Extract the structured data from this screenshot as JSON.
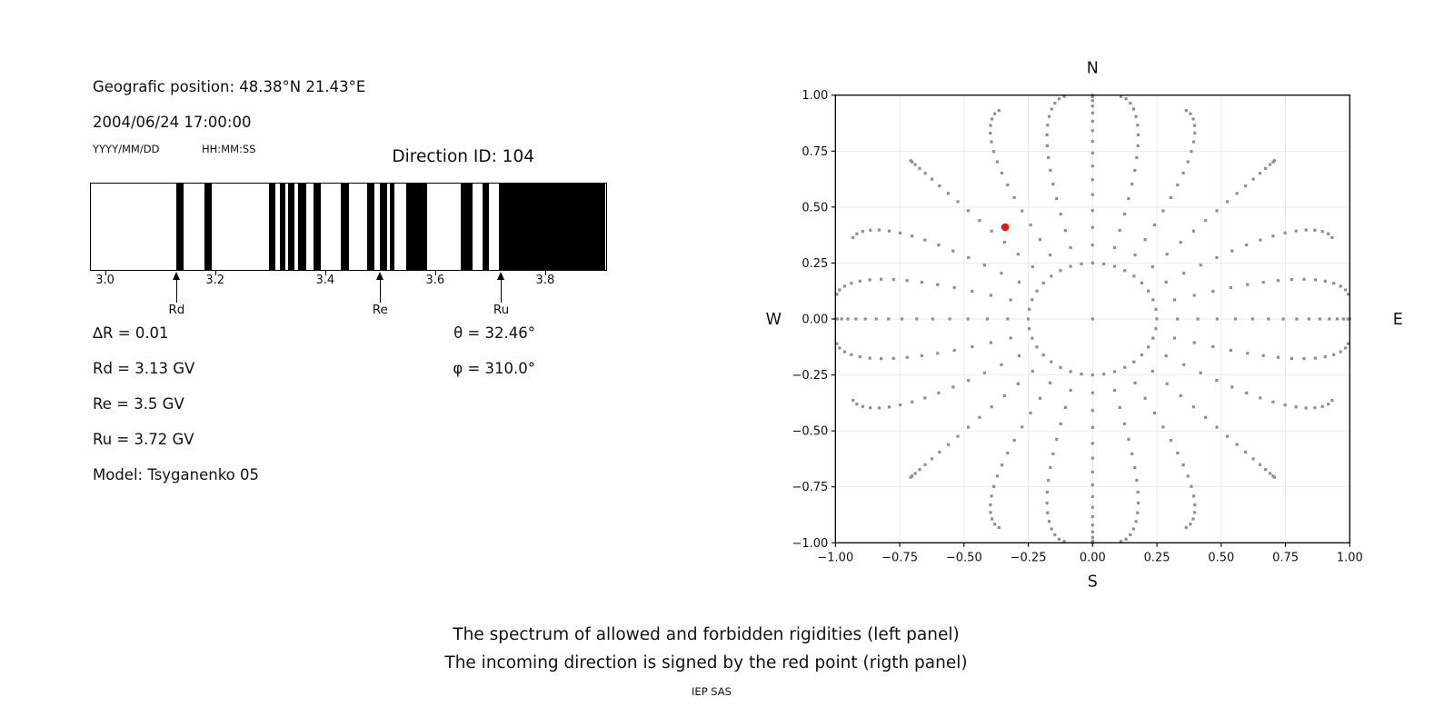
{
  "info": {
    "geo_position": "Geografic position: 48.38°N 21.43°E",
    "datetime": "2004/06/24 17:00:00",
    "date_format_label": "YYYY/MM/DD",
    "time_format_label": "HH:MM:SS",
    "direction_id": "Direction ID: 104"
  },
  "params": {
    "left": [
      "∆R = 0.01",
      "Rd = 3.13 GV",
      "Re = 3.5 GV",
      "Ru = 3.72 GV",
      "Model: Tsyganenko 05"
    ],
    "right": [
      "θ = 32.46°",
      "φ = 310.0°"
    ]
  },
  "caption": {
    "line1": "The spectrum of allowed and forbidden rigidities (left panel)",
    "line2": "The incoming direction is signed by the red point (rigth panel)",
    "credit": "IEP SAS"
  },
  "chart_data": [
    {
      "type": "bar",
      "name": "rigidity-spectrum",
      "description": "Binary spectrum of allowed (black) and forbidden (white) rigidities in GV",
      "xlim": [
        2.975,
        3.91
      ],
      "xticks": [
        3.0,
        3.2,
        3.4,
        3.6,
        3.8
      ],
      "xtick_labels": [
        "3.0",
        "3.2",
        "3.4",
        "3.6",
        "3.8"
      ],
      "black_intervals_gv": [
        [
          3.13,
          3.143
        ],
        [
          3.181,
          3.194
        ],
        [
          3.298,
          3.311
        ],
        [
          3.318,
          3.328
        ],
        [
          3.333,
          3.345
        ],
        [
          3.352,
          3.366
        ],
        [
          3.38,
          3.393
        ],
        [
          3.43,
          3.444
        ],
        [
          3.477,
          3.49
        ],
        [
          3.5,
          3.513
        ],
        [
          3.518,
          3.527
        ],
        [
          3.548,
          3.587
        ],
        [
          3.647,
          3.669
        ],
        [
          3.687,
          3.698
        ],
        [
          3.716,
          3.91
        ]
      ],
      "cutoff_arrows": [
        {
          "label": "Rd",
          "rigidity_gv": 3.13
        },
        {
          "label": "Re",
          "rigidity_gv": 3.5
        },
        {
          "label": "Ru",
          "rigidity_gv": 3.72
        }
      ]
    },
    {
      "type": "scatter",
      "name": "incoming-direction-map",
      "xlim": [
        -1.0,
        1.0
      ],
      "ylim": [
        -1.0,
        1.0
      ],
      "xticks": [
        -1.0,
        -0.75,
        -0.5,
        -0.25,
        0.0,
        0.25,
        0.5,
        0.75,
        1.0
      ],
      "tick_labels": [
        "−1.00",
        "−0.75",
        "−0.50",
        "−0.25",
        "0.00",
        "0.25",
        "0.50",
        "0.75",
        "1.00"
      ],
      "grid": true,
      "compass_labels": {
        "top": "N",
        "bottom": "S",
        "left": "W",
        "right": "E"
      },
      "red_point": {
        "x": -0.34,
        "y": 0.41
      },
      "center_dot": {
        "x": 0,
        "y": 0
      },
      "inner_ring": {
        "radius": 0.25,
        "dot_count": 36
      },
      "spokes": {
        "count": 24,
        "step_deg": 15,
        "r_inner": 0.33,
        "r_outer": 1.0,
        "points_per_spoke": 15,
        "outer_bunch_exponent": 1.7,
        "drift_deg": 10
      },
      "colors": {
        "dot": "#8f8f8f",
        "red_point": "#ee1111",
        "grid": "#e8e8e8",
        "frame": "#000000"
      }
    }
  ]
}
